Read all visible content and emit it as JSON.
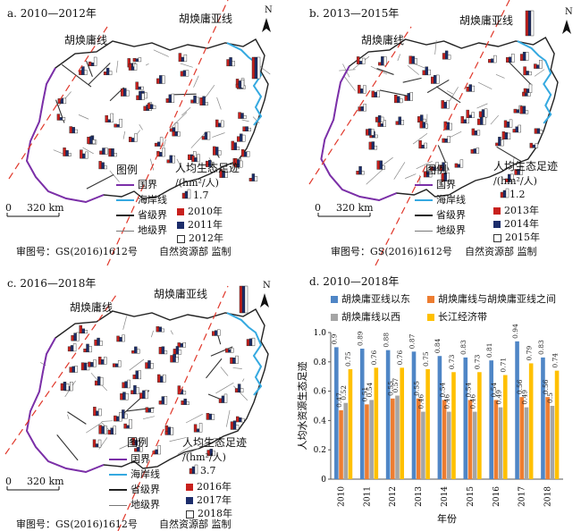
{
  "panels": [
    {
      "id": "a",
      "title": "a. 2010—2012年",
      "line_west": "胡焕庸线",
      "line_east": "胡焕庸亚线",
      "legend_title": "图例",
      "legend_items": [
        "国界",
        "海岸线",
        "省级界",
        "地级界"
      ],
      "footprint_title": "人均生态足迹",
      "footprint_unit": "/(hm²/人)",
      "scale_value": "1.7",
      "years": [
        "2010年",
        "2011年",
        "2012年"
      ],
      "scale_label": "320 km",
      "scale_zero": "0",
      "approval": "审图号：GS(2016)1612号",
      "supervisor": "自然资源部 监制",
      "north": "N"
    },
    {
      "id": "b",
      "title": "b. 2013—2015年",
      "line_west": "胡焕庸线",
      "line_east": "胡焕庸亚线",
      "legend_title": "图例",
      "legend_items": [
        "国界",
        "海岸线",
        "省级界",
        "地级界"
      ],
      "footprint_title": "人均生态足迹",
      "footprint_unit": "/(hm²/人)",
      "scale_value": "1.2",
      "years": [
        "2013年",
        "2014年",
        "2015年"
      ],
      "scale_label": "320 km",
      "scale_zero": "0",
      "approval": "审图号：GS(2016)1612号",
      "supervisor": "自然资源部 监制",
      "north": "N"
    },
    {
      "id": "c",
      "title": "c. 2016—2018年",
      "line_west": "胡焕庸线",
      "line_east": "胡焕庸亚线",
      "legend_title": "图例",
      "legend_items": [
        "国界",
        "海岸线",
        "省级界",
        "地级界"
      ],
      "footprint_title": "人均生态足迹",
      "footprint_unit": "/(hm²/人)",
      "scale_value": "3.7",
      "years": [
        "2016年",
        "2017年",
        "2018年"
      ],
      "scale_label": "320 km",
      "scale_zero": "0",
      "approval": "审图号：GS(2016)1612号",
      "supervisor": "自然资源部 监制",
      "north": "N"
    }
  ],
  "colors": {
    "border": "#7b2fa8",
    "coast": "#35a9e0",
    "dashed": "#e0382b",
    "y1": "#c8201d",
    "y2": "#1c2d6b",
    "y3": "#ffffff"
  },
  "chart_title": "d. 2010—2018年",
  "chart_data": {
    "type": "bar",
    "categories": [
      "2010",
      "2011",
      "2012",
      "2013",
      "2014",
      "2015",
      "2016",
      "2017",
      "2018"
    ],
    "series": [
      {
        "name": "胡焕庸亚线以东",
        "color": "#4f86c6",
        "values": [
          0.9,
          0.89,
          0.88,
          0.87,
          0.84,
          0.83,
          0.81,
          0.94,
          0.83
        ]
      },
      {
        "name": "胡焕庸线与胡焕庸亚线之间",
        "color": "#ed7d31",
        "values": [
          0.47,
          0.51,
          0.55,
          0.55,
          0.54,
          0.54,
          0.54,
          0.56,
          0.56
        ]
      },
      {
        "name": "胡焕庸线以西",
        "color": "#a5a5a5",
        "values": [
          0.52,
          0.54,
          0.57,
          0.46,
          0.46,
          0.46,
          0.49,
          0.49,
          0.5
        ]
      },
      {
        "name": "长江经济带",
        "color": "#ffc000",
        "values": [
          0.75,
          0.76,
          0.76,
          0.75,
          0.73,
          0.73,
          0.71,
          0.79,
          0.74
        ]
      }
    ],
    "labels": [
      [
        "0.9",
        "0.89",
        "0.88",
        "0.87",
        "0.84",
        "0.83",
        "0.81",
        "0.94",
        "0.83"
      ],
      [
        "0.47",
        "0.51",
        "0.55",
        "0.55",
        "0.54",
        "0.54",
        "0.54",
        "0.56",
        "0.56"
      ],
      [
        "0.52",
        "0.54",
        "0.57",
        "0.46",
        "0.46",
        "0.46",
        "0.49",
        "0.49",
        "0.5"
      ],
      [
        "0.75",
        "0.76",
        "0.76",
        "0.75",
        "0.73",
        "0.73",
        "0.71",
        "0.79",
        "0.74"
      ]
    ],
    "ylabel": "人均水资源生态足迹",
    "xlabel": "年份",
    "ylim": [
      0,
      1
    ],
    "yticks": [
      "0",
      "0.2",
      "0.4",
      "0.6",
      "0.8",
      "1.0"
    ]
  }
}
